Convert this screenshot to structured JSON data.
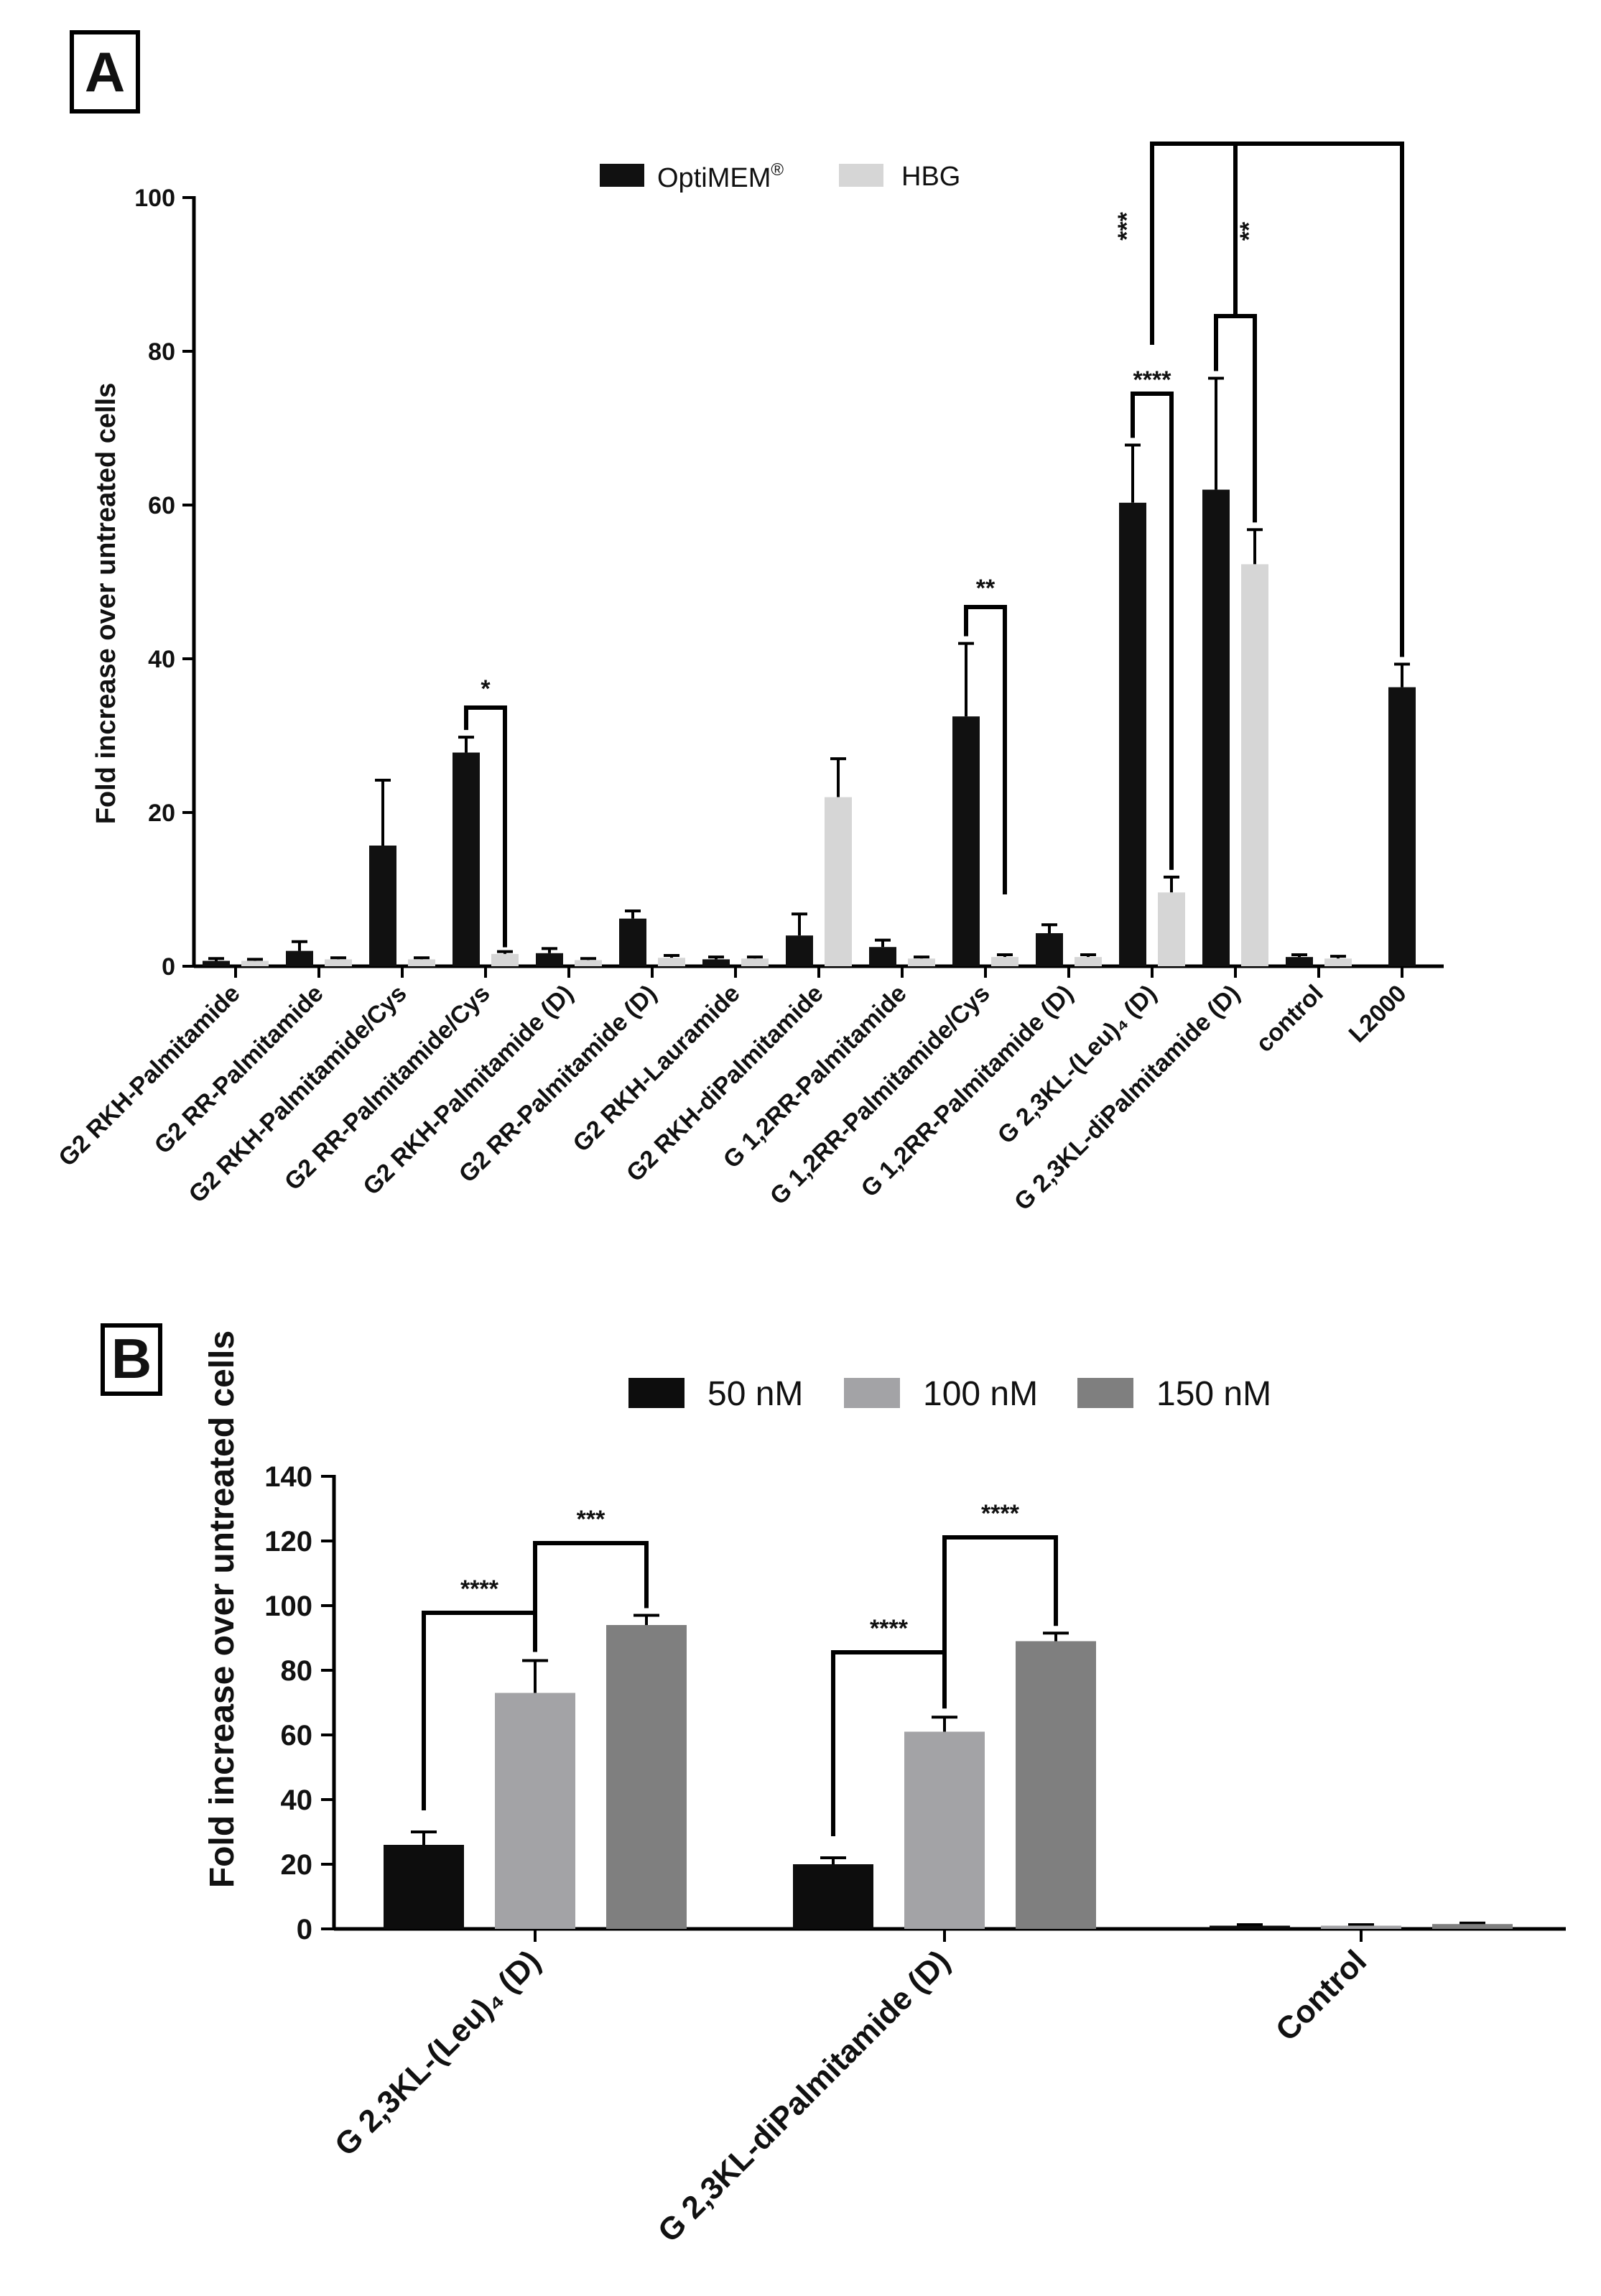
{
  "chart_data": [
    {
      "panel": "A",
      "type": "bar",
      "ylabel": "Fold increase over untreated cells",
      "xlabel": "",
      "ylim": [
        0,
        100
      ],
      "yticks": [
        0,
        20,
        40,
        60,
        80,
        100
      ],
      "legend_position": "top-center",
      "categories": [
        "G2 RKH-Palmitamide",
        "G2 RR-Palmitamide",
        "G2 RKH-Palmitamide/Cys",
        "G2 RR-Palmitamide/Cys",
        "G2 RKH-Palmitamide (D)",
        "G2 RR-Palmitamide (D)",
        "G2 RKH-Lauramide",
        "G2 RKH-diPalmitamide",
        "G 1,2RR-Palmitamide",
        "G 1,2RR-Palmitamide/Cys",
        "G 1,2RR-Palmitamide (D)",
        "G 2,3KL-(Leu)₄ (D)",
        "G 2,3KL-diPalmitamide (D)",
        "control",
        "L2000"
      ],
      "series": [
        {
          "name": "OptiMEM",
          "legend_label": "OptiMEM",
          "legend_sup": "®",
          "color": "#111111",
          "values": [
            0.7,
            2.0,
            15.7,
            27.8,
            1.7,
            6.2,
            0.9,
            4.0,
            2.5,
            32.5,
            4.3,
            60.3,
            62.0,
            1.2,
            36.3
          ],
          "errors": [
            0.3,
            1.2,
            8.5,
            2.0,
            0.6,
            1.0,
            0.3,
            2.8,
            0.9,
            9.5,
            1.1,
            7.5,
            14.5,
            0.3,
            3.0
          ]
        },
        {
          "name": "HBG",
          "legend_label": "HBG",
          "color": "#d6d6d6",
          "values": [
            0.7,
            0.9,
            0.9,
            1.6,
            0.8,
            1.1,
            1.0,
            22.0,
            1.0,
            1.2,
            1.2,
            9.6,
            52.3,
            1.0,
            null
          ],
          "errors": [
            0.2,
            0.2,
            0.2,
            0.3,
            0.2,
            0.3,
            0.2,
            5.0,
            0.2,
            0.3,
            0.3,
            2.0,
            4.5,
            0.3,
            null
          ]
        }
      ],
      "significance": [
        {
          "label": "*",
          "description": "G2 RR-Palmitamide/Cys OptiMEM vs HBG"
        },
        {
          "label": "**",
          "description": "G 1,2RR-Palmitamide/Cys OptiMEM vs HBG"
        },
        {
          "label": "****",
          "description": "G 2,3KL-(Leu)4 (D) OptiMEM vs HBG"
        },
        {
          "label": "***",
          "description": "G 2,3KL-(Leu)4 (D) vs L2000"
        },
        {
          "label": "**",
          "description": "G 2,3KL-diPalmitamide (D) vs L2000"
        }
      ]
    },
    {
      "panel": "B",
      "type": "bar",
      "ylabel": "Fold increase over untreated cells",
      "xlabel": "",
      "ylim": [
        0,
        140
      ],
      "yticks": [
        0,
        20,
        40,
        60,
        80,
        100,
        120,
        140
      ],
      "legend_position": "top-center",
      "categories": [
        "G 2,3KL-(Leu)₄ (D)",
        "G 2,3KL-diPalmitamide (D)",
        "Control"
      ],
      "series": [
        {
          "name": "50 nM",
          "color": "#0d0d0d",
          "values": [
            26,
            20,
            1
          ],
          "errors": [
            4,
            2,
            0.3
          ]
        },
        {
          "name": "100 nM",
          "color": "#a3a3a6",
          "values": [
            73,
            61,
            1
          ],
          "errors": [
            10,
            4.5,
            0.3
          ]
        },
        {
          "name": "150 nM",
          "color": "#7f7f7f",
          "values": [
            94,
            89,
            1.5
          ],
          "errors": [
            3,
            2.5,
            0.3
          ]
        }
      ],
      "significance": [
        {
          "label": "****",
          "description": "G 2,3KL-(Leu)4 (D) 50 nM vs 100 nM"
        },
        {
          "label": "***",
          "description": "G 2,3KL-(Leu)4 (D) 100 nM vs 150 nM"
        },
        {
          "label": "****",
          "description": "G 2,3KL-diPalmitamide (D) 50 nM vs 100 nM"
        },
        {
          "label": "****",
          "description": "G 2,3KL-diPalmitamide (D) 100 nM vs 150 nM"
        }
      ]
    }
  ]
}
